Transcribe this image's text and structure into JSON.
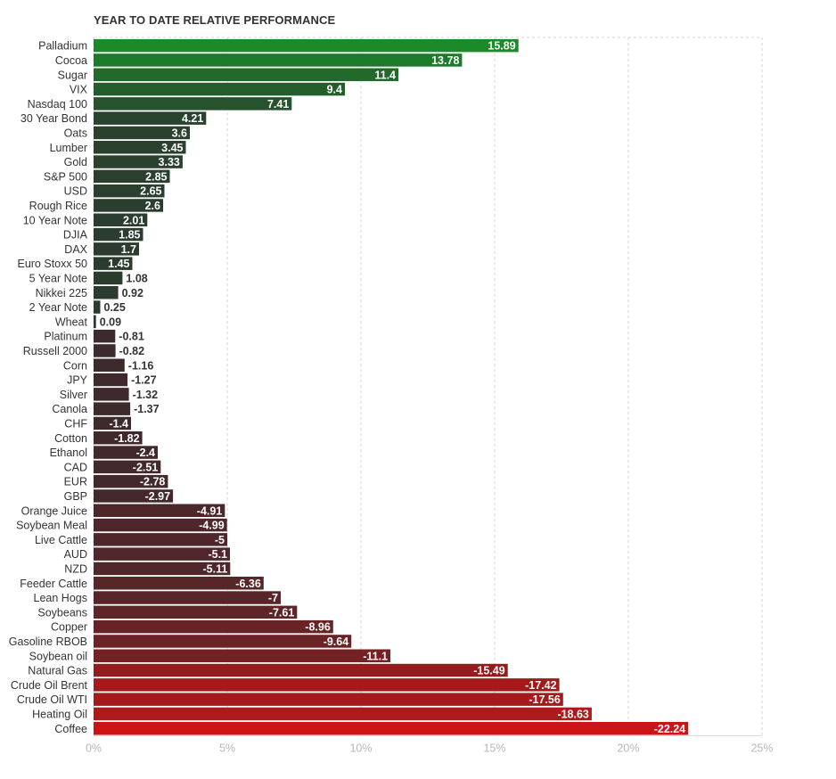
{
  "chart_data": {
    "type": "bar",
    "orientation": "horizontal",
    "title": "YEAR TO DATE RELATIVE PERFORMANCE",
    "xlim": [
      0,
      25
    ],
    "x_ticks": [
      "0%",
      "5%",
      "10%",
      "15%",
      "20%",
      "25%"
    ],
    "grid": true,
    "categories": [
      "Palladium",
      "Cocoa",
      "Sugar",
      "VIX",
      "Nasdaq 100",
      "30 Year Bond",
      "Oats",
      "Lumber",
      "Gold",
      "S&P 500",
      "USD",
      "Rough Rice",
      "10 Year Note",
      "DJIA",
      "DAX",
      "Euro Stoxx 50",
      "5 Year Note",
      "Nikkei 225",
      "2 Year Note",
      "Wheat",
      "Platinum",
      "Russell 2000",
      "Corn",
      "JPY",
      "Silver",
      "Canola",
      "CHF",
      "Cotton",
      "Ethanol",
      "CAD",
      "EUR",
      "GBP",
      "Orange Juice",
      "Soybean Meal",
      "Live Cattle",
      "AUD",
      "NZD",
      "Feeder Cattle",
      "Lean Hogs",
      "Soybeans",
      "Copper",
      "Gasoline RBOB",
      "Soybean oil",
      "Natural Gas",
      "Crude Oil Brent",
      "Crude Oil WTI",
      "Heating Oil",
      "Coffee"
    ],
    "values": [
      15.89,
      13.78,
      11.4,
      9.4,
      7.41,
      4.21,
      3.6,
      3.45,
      3.33,
      2.85,
      2.65,
      2.6,
      2.01,
      1.85,
      1.7,
      1.45,
      1.08,
      0.92,
      0.25,
      0.09,
      -0.81,
      -0.82,
      -1.16,
      -1.27,
      -1.32,
      -1.37,
      -1.4,
      -1.82,
      -2.4,
      -2.51,
      -2.78,
      -2.97,
      -4.91,
      -4.99,
      -5,
      -5.1,
      -5.11,
      -6.36,
      -7,
      -7.61,
      -8.96,
      -9.64,
      -11.1,
      -15.49,
      -17.42,
      -17.56,
      -18.63,
      -22.24
    ],
    "value_labels": [
      "15.89",
      "13.78",
      "11.4",
      "9.4",
      "7.41",
      "4.21",
      "3.6",
      "3.45",
      "3.33",
      "2.85",
      "2.65",
      "2.6",
      "2.01",
      "1.85",
      "1.7",
      "1.45",
      "1.08",
      "0.92",
      "0.25",
      "0.09",
      "-0.81",
      "-0.82",
      "-1.16",
      "-1.27",
      "-1.32",
      "-1.37",
      "-1.4",
      "-1.82",
      "-2.4",
      "-2.51",
      "-2.78",
      "-2.97",
      "-4.91",
      "-4.99",
      "-5",
      "-5.1",
      "-5.11",
      "-6.36",
      "-7",
      "-7.61",
      "-8.96",
      "-9.64",
      "-11.1",
      "-15.49",
      "-17.42",
      "-17.56",
      "-18.63",
      "-22.24"
    ],
    "colors": {
      "positive_strong": "#1b8a2a",
      "positive_weak": "#2b3a2e",
      "negative_weak": "#3a2a2e",
      "negative_strong": "#cc1414"
    }
  }
}
